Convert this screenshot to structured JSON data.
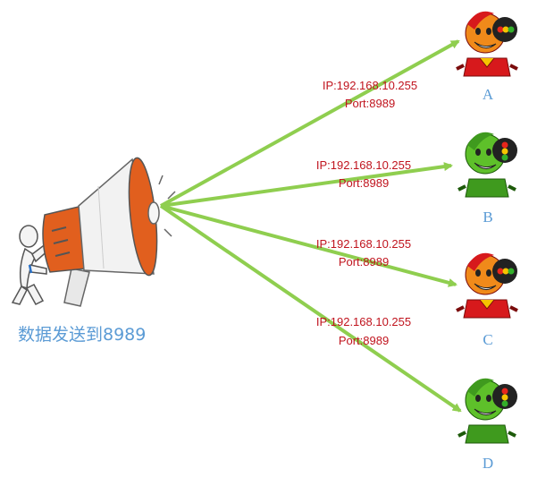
{
  "caption": "数据发送到8989",
  "colors": {
    "arrow": "#8fce4f",
    "address_text": "#c0141e",
    "letter_text": "#5b9bd5",
    "caption_text": "#5b9bd5",
    "robot_red": "#d7191c",
    "robot_orange": "#f08a1a",
    "robot_green": "#5ec02a",
    "speaker_orange": "#e15f1e"
  },
  "receivers": [
    {
      "letter": "A",
      "ip": "IP:192.168.10.255",
      "port": "Port:8989",
      "color": "red"
    },
    {
      "letter": "B",
      "ip": "IP:192.168.10.255",
      "port": "Port:8989",
      "color": "green"
    },
    {
      "letter": "C",
      "ip": "IP:192.168.10.255",
      "port": "Port:8989",
      "color": "red"
    },
    {
      "letter": "D",
      "ip": "IP:192.168.10.255",
      "port": "Port:8989",
      "color": "green"
    }
  ]
}
